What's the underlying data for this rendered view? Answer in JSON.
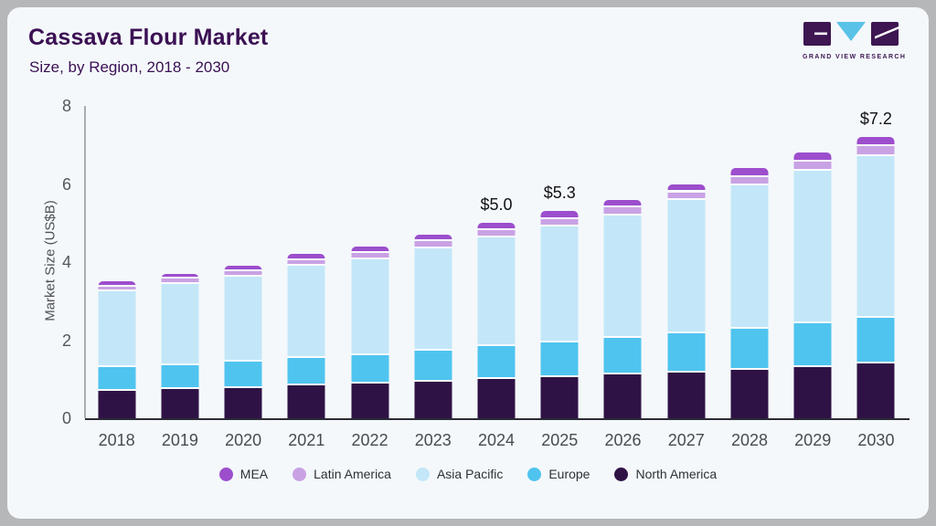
{
  "header": {
    "logo_text": "GRAND VIEW RESEARCH"
  },
  "chart_data": {
    "type": "bar",
    "stacked": true,
    "title": "Cassava Flour Market",
    "subtitle": "Size, by Region, 2018 - 2030",
    "ylabel": "Market Size (US$B)",
    "ylim": [
      0,
      8
    ],
    "yticks": [
      0,
      2,
      4,
      6,
      8
    ],
    "grid": false,
    "legend_position": "bottom",
    "categories": [
      "2018",
      "2019",
      "2020",
      "2021",
      "2022",
      "2023",
      "2024",
      "2025",
      "2026",
      "2027",
      "2028",
      "2029",
      "2030"
    ],
    "series": [
      {
        "name": "North America",
        "color": "#2f1245",
        "values": [
          0.7,
          0.74,
          0.78,
          0.85,
          0.88,
          0.93,
          1.0,
          1.06,
          1.12,
          1.18,
          1.25,
          1.32,
          1.4
        ]
      },
      {
        "name": "Europe",
        "color": "#4fc4ef",
        "values": [
          0.6,
          0.62,
          0.66,
          0.7,
          0.73,
          0.79,
          0.84,
          0.89,
          0.93,
          1.0,
          1.05,
          1.11,
          1.18
        ]
      },
      {
        "name": "Asia Pacific",
        "color": "#c3e7f8",
        "values": [
          1.96,
          2.08,
          2.18,
          2.35,
          2.47,
          2.64,
          2.8,
          2.97,
          3.15,
          3.4,
          3.66,
          3.91,
          4.14
        ]
      },
      {
        "name": "Latin America",
        "color": "#c9a2e4",
        "values": [
          0.12,
          0.13,
          0.14,
          0.15,
          0.16,
          0.17,
          0.18,
          0.19,
          0.2,
          0.21,
          0.22,
          0.23,
          0.24
        ]
      },
      {
        "name": "MEA",
        "color": "#9c4ecd",
        "values": [
          0.12,
          0.13,
          0.14,
          0.15,
          0.16,
          0.17,
          0.18,
          0.19,
          0.2,
          0.21,
          0.22,
          0.23,
          0.24
        ]
      }
    ],
    "totals": [
      3.5,
      3.7,
      3.9,
      4.2,
      4.4,
      4.7,
      5.0,
      5.3,
      5.6,
      6.0,
      6.4,
      6.8,
      7.2
    ],
    "annotations": [
      {
        "category": "2024",
        "text": "$5.0"
      },
      {
        "category": "2025",
        "text": "$5.3"
      },
      {
        "category": "2030",
        "text": "$7.2"
      }
    ],
    "legend_order": [
      "MEA",
      "Latin America",
      "Asia Pacific",
      "Europe",
      "North America"
    ]
  },
  "logo_colors": {
    "purple": "#3d1652",
    "blue": "#5bc2e7"
  }
}
